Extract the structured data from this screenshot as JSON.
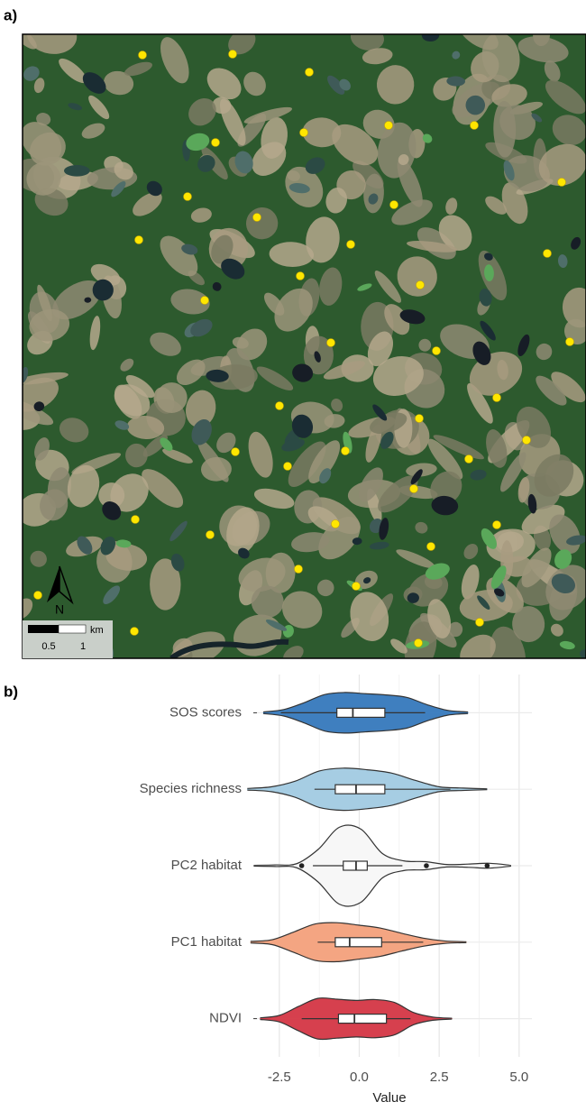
{
  "panel_a": {
    "label": "a)",
    "scale_unit": "km",
    "scale_ticks": [
      "0.5",
      "1"
    ],
    "north": "N"
  },
  "chart_data": {
    "type": "violin",
    "panel_label": "b)",
    "xlabel": "Value",
    "xlim": [
      -3.2,
      5.4
    ],
    "xticks": [
      -2.5,
      {
        "value": 0,
        "label": "0.0"
      },
      2.5,
      {
        "value": 5,
        "label": "5.0"
      }
    ],
    "minor_xticks": [
      -1.25,
      1.25,
      3.75
    ],
    "grid": true,
    "series": [
      {
        "name": "SOS scores",
        "color": "#3f7fbf",
        "violin_range": [
          -3.0,
          3.4
        ],
        "density": [
          0.02,
          0.08,
          0.25,
          0.45,
          0.5,
          0.47,
          0.44,
          0.38,
          0.2,
          0.06,
          0.02
        ],
        "min": -2.45,
        "q1": -0.7,
        "median": -0.2,
        "q3": 0.8,
        "max": 2.06,
        "outliers": []
      },
      {
        "name": "Species richness",
        "color": "#a6cde3",
        "violin_range": [
          -3.5,
          4.0
        ],
        "density": [
          0.02,
          0.06,
          0.2,
          0.45,
          0.52,
          0.48,
          0.4,
          0.22,
          0.06,
          0.03,
          0.01
        ],
        "min": -1.4,
        "q1": -0.75,
        "median": -0.1,
        "q3": 0.8,
        "max": 2.85,
        "outliers": []
      },
      {
        "name": "PC2 habitat",
        "color": "#f7f7f7",
        "violin_range": [
          -3.3,
          4.75
        ],
        "density": [
          0.01,
          0.02,
          0.05,
          0.4,
          0.95,
          0.9,
          0.3,
          0.12,
          0.1,
          0.03,
          0.04,
          0.06,
          0.01
        ],
        "min": -1.45,
        "q1": -0.5,
        "median": -0.1,
        "q3": 0.25,
        "max": 1.35,
        "outliers": [
          -1.8,
          2.1,
          4.0
        ]
      },
      {
        "name": "PC1 habitat",
        "color": "#f4a582",
        "violin_range": [
          -3.4,
          3.35
        ],
        "density": [
          0.02,
          0.06,
          0.25,
          0.45,
          0.48,
          0.42,
          0.35,
          0.22,
          0.1,
          0.03,
          0.01
        ],
        "min": -1.3,
        "q1": -0.75,
        "median": -0.3,
        "q3": 0.7,
        "max": 2.0,
        "outliers": []
      },
      {
        "name": "NDVI",
        "color": "#d6404e",
        "violin_range": [
          -3.1,
          2.9
        ],
        "density": [
          0.02,
          0.08,
          0.3,
          0.5,
          0.48,
          0.45,
          0.47,
          0.4,
          0.15,
          0.04,
          0.01
        ],
        "min": -1.8,
        "q1": -0.65,
        "median": -0.15,
        "q3": 0.85,
        "max": 1.6,
        "outliers": []
      }
    ]
  }
}
